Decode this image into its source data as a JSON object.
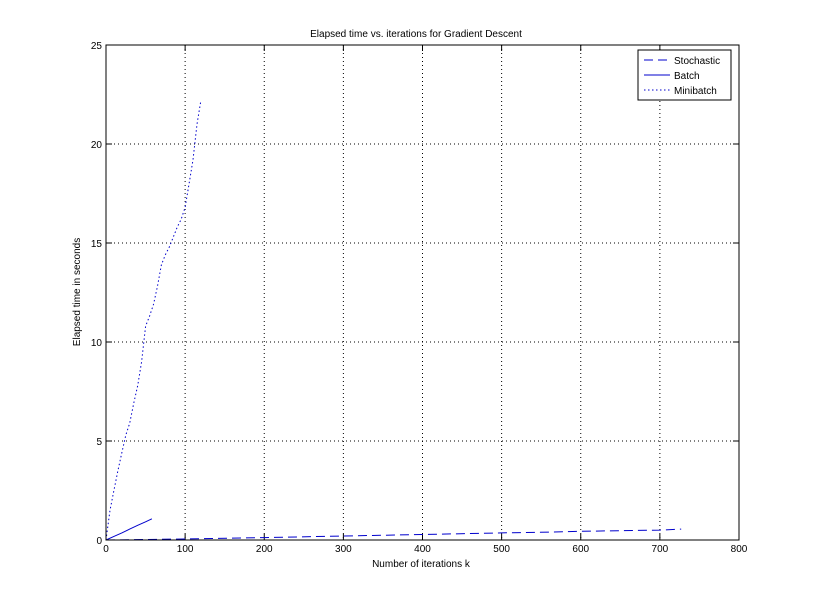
{
  "chart_data": {
    "type": "line",
    "title": "Elapsed time vs. iterations for Gradient Descent",
    "xlabel": "Number of iterations k",
    "ylabel": "Elapsed time in seconds",
    "xlim": [
      0,
      800
    ],
    "ylim": [
      0,
      25
    ],
    "xticks": [
      0,
      100,
      200,
      300,
      400,
      500,
      600,
      700,
      800
    ],
    "yticks": [
      0,
      5,
      10,
      15,
      20,
      25
    ],
    "grid": true,
    "legend_position": "top-right",
    "line_color": "#0000cc",
    "series": [
      {
        "name": "Stochastic",
        "style": "dashed",
        "x": [
          0,
          100,
          200,
          300,
          400,
          500,
          560,
          600,
          650,
          700,
          727
        ],
        "y": [
          0.0,
          0.05,
          0.12,
          0.2,
          0.28,
          0.36,
          0.4,
          0.44,
          0.47,
          0.5,
          0.55
        ]
      },
      {
        "name": "Batch",
        "style": "solid",
        "x": [
          0,
          10,
          20,
          30,
          40,
          50,
          58
        ],
        "y": [
          0.0,
          0.18,
          0.36,
          0.55,
          0.74,
          0.92,
          1.07
        ]
      },
      {
        "name": "Minibatch",
        "style": "dotted",
        "x": [
          0,
          2,
          5,
          10,
          15,
          20,
          25,
          30,
          35,
          40,
          45,
          50,
          55,
          60,
          65,
          70,
          75,
          80,
          85,
          90,
          95,
          100,
          105,
          110,
          115,
          120
        ],
        "y": [
          0.0,
          0.6,
          1.5,
          2.5,
          3.5,
          4.4,
          5.3,
          5.9,
          6.9,
          7.8,
          9.0,
          10.8,
          11.3,
          11.9,
          12.8,
          13.9,
          14.4,
          14.8,
          15.3,
          15.8,
          16.2,
          16.8,
          18.0,
          19.2,
          21.0,
          22.2
        ]
      }
    ]
  }
}
